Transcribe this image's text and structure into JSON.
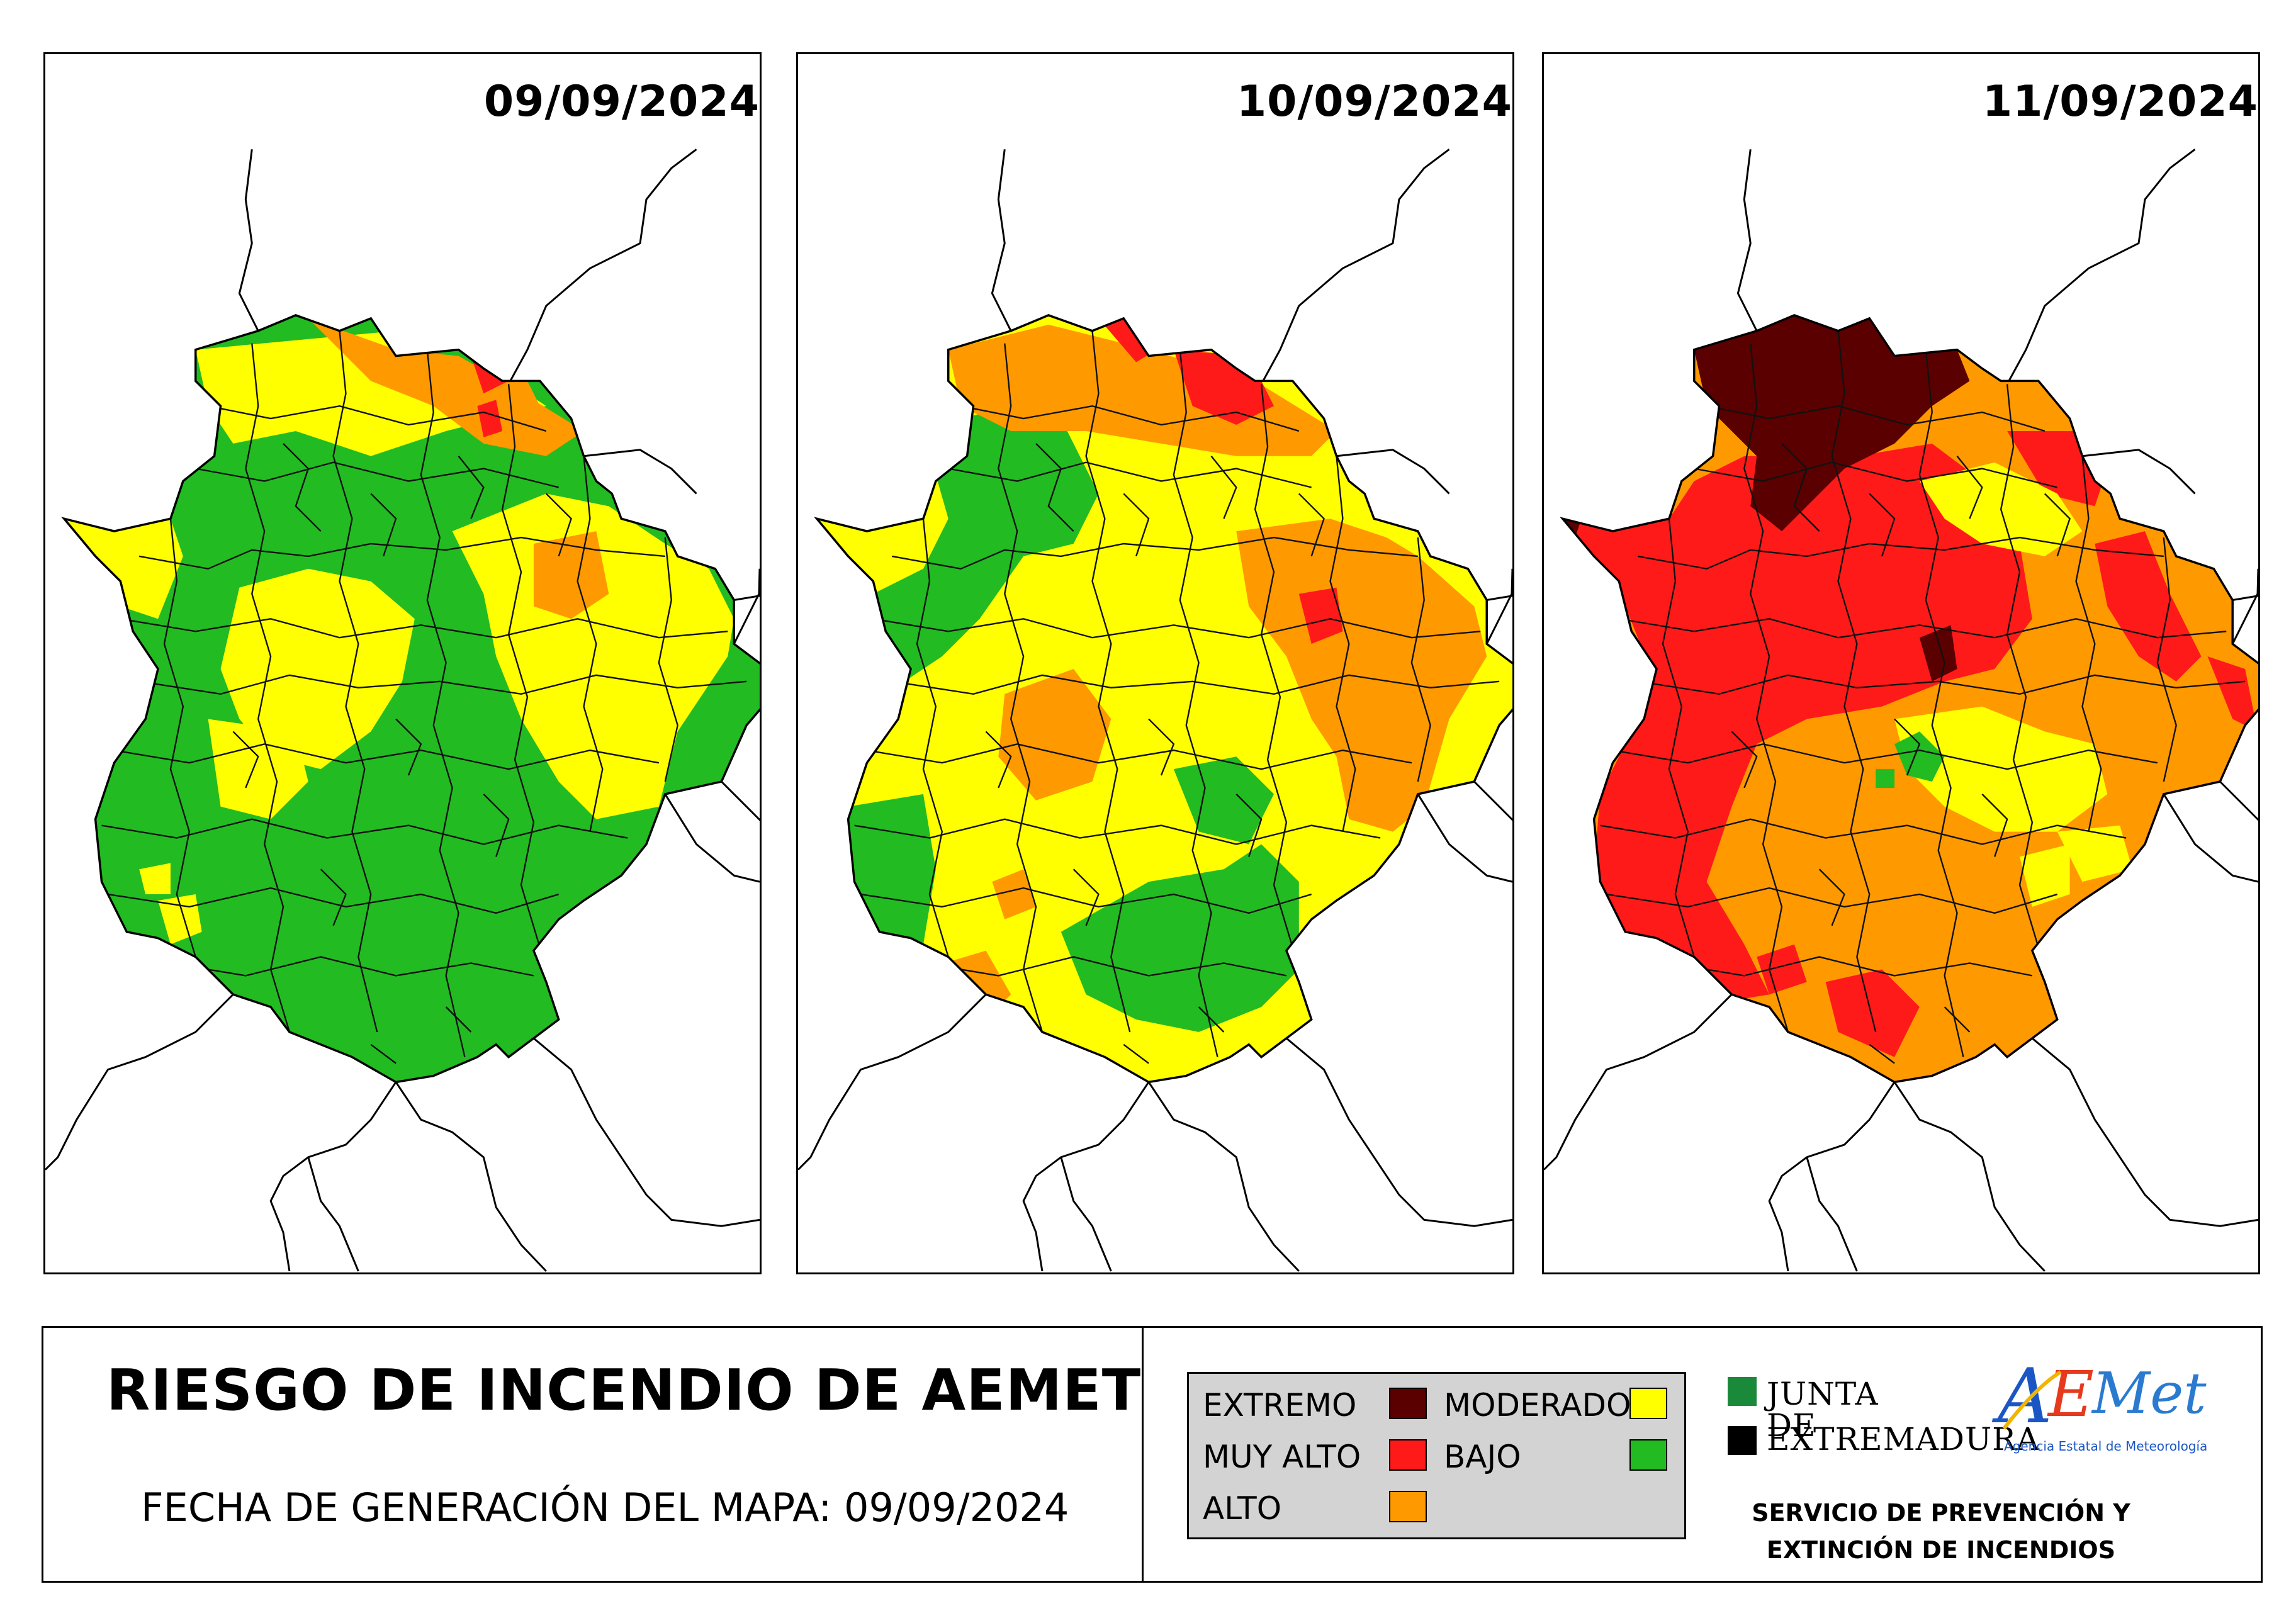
{
  "maps": [
    {
      "date": "09/09/2024"
    },
    {
      "date": "10/09/2024"
    },
    {
      "date": "11/09/2024"
    }
  ],
  "footer": {
    "title": "RIESGO DE INCENDIO DE AEMET",
    "generation_date": "FECHA DE GENERACIÓN DEL MAPA: 09/09/2024"
  },
  "legend": [
    {
      "label": "EXTREMO",
      "color": "#5a0000"
    },
    {
      "label": "MUY ALTO",
      "color": "#ff1a1a"
    },
    {
      "label": "ALTO",
      "color": "#ff9900"
    },
    {
      "label": "MODERADO",
      "color": "#ffff00"
    },
    {
      "label": "BAJO",
      "color": "#22bb22"
    }
  ],
  "junta": {
    "line1": "JUNTA DE",
    "line2": "EXTREMADURA",
    "green": "#1a8a3a",
    "black": "#000000"
  },
  "aemet": {
    "logo_text": "AEMet",
    "subtitle": "Agencia Estatal de Meteorología"
  },
  "service": {
    "line1": "SERVICIO DE PREVENCIÓN Y",
    "line2": "EXTINCIÓN DE INCENDIOS"
  }
}
